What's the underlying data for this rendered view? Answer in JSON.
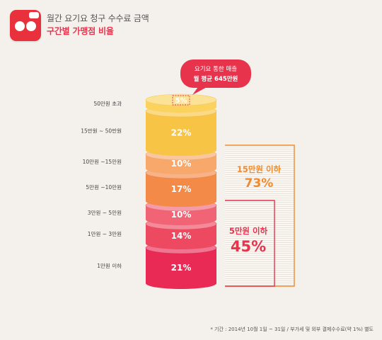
{
  "header": {
    "title": "월간 요기요 청구 수수료 금액",
    "subtitle": "구간별 가맹점 비율",
    "logo_icon": "yogiyo-logo-icon"
  },
  "callout": {
    "line1": "요기요 통한 매출",
    "line2": "월 평균 645만원"
  },
  "brackets": [
    {
      "label": "15만원 이하",
      "value": "73%",
      "color": "#f08a2c"
    },
    {
      "label": "5만원 이하",
      "value": "45%",
      "color": "#e8334d"
    }
  ],
  "footnote": "* 기간 : 2014년 10월 1일 ~ 31일 / 부가세 및 외부 결제수수료(약 1%) 별도",
  "chart_data": {
    "type": "bar",
    "categories": [
      "50만원 초과",
      "15만원 ~ 50만원",
      "10만원 ~15만원",
      "5만원 ~10만원",
      "3만원 ~ 5만원",
      "1만원 ~ 3만원",
      "1만원 이하"
    ],
    "values": [
      5,
      22,
      10,
      17,
      10,
      14,
      21
    ],
    "labels": [
      "5%",
      "22%",
      "10%",
      "17%",
      "10%",
      "14%",
      "21%"
    ],
    "colors": [
      "#fbd25e",
      "#f8c446",
      "#f8a86a",
      "#f38a47",
      "#f06476",
      "#ed4a62",
      "#e82a55"
    ]
  }
}
